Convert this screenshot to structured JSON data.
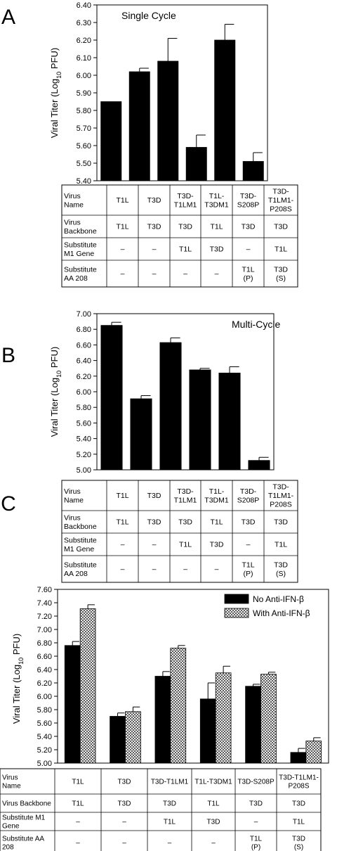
{
  "panels": [
    "A",
    "B",
    "C"
  ],
  "table_rows": [
    [
      "Virus",
      "Name"
    ],
    [
      "Virus",
      "Backbone"
    ],
    [
      "Substitute",
      "M1 Gene"
    ],
    [
      "Substitute",
      "AA 208"
    ]
  ],
  "table_rows_c": [
    [
      "Virus",
      "Name"
    ],
    [
      "Virus Backbone"
    ],
    [
      "Substitute M1",
      "Gene"
    ],
    [
      "Substitute AA",
      "208"
    ]
  ],
  "table_cols": [
    {
      "name": [
        "T1L"
      ],
      "backbone": "T1L",
      "m1": "–",
      "aa": [
        "–"
      ]
    },
    {
      "name": [
        "T3D"
      ],
      "backbone": "T3D",
      "m1": "–",
      "aa": [
        "–"
      ]
    },
    {
      "name": [
        "T3D-",
        "T1LM1"
      ],
      "backbone": "T3D",
      "m1": "T1L",
      "aa": [
        "–"
      ]
    },
    {
      "name": [
        "T1L-",
        "T3DM1"
      ],
      "backbone": "T1L",
      "m1": "T3D",
      "aa": [
        "–"
      ]
    },
    {
      "name": [
        "T3D-",
        "S208P"
      ],
      "backbone": "T3D",
      "m1": "–",
      "aa": [
        "T1L",
        "(P)"
      ]
    },
    {
      "name": [
        "T3D-",
        "T1LM1-",
        "P208S"
      ],
      "backbone": "T3D",
      "m1": "T1L",
      "aa": [
        "T3D",
        "(S)"
      ]
    }
  ],
  "table_cols_c": [
    {
      "name": [
        "T1L"
      ],
      "backbone": "T1L",
      "m1": "–",
      "aa": [
        "–"
      ]
    },
    {
      "name": [
        "T3D"
      ],
      "backbone": "T3D",
      "m1": "–",
      "aa": [
        "–"
      ]
    },
    {
      "name": [
        "T3D-T1LM1"
      ],
      "backbone": "T3D",
      "m1": "T1L",
      "aa": [
        "–"
      ]
    },
    {
      "name": [
        "T1L-T3DM1"
      ],
      "backbone": "T1L",
      "m1": "T3D",
      "aa": [
        "–"
      ]
    },
    {
      "name": [
        "T3D-S208P"
      ],
      "backbone": "T3D",
      "m1": "–",
      "aa": [
        "T1L",
        "(P)"
      ]
    },
    {
      "name": [
        "T3D-T1LM1-",
        "P208S"
      ],
      "backbone": "T3D",
      "m1": "T1L",
      "aa": [
        "T3D",
        "(S)"
      ]
    }
  ],
  "colors": {
    "bar": "#000000",
    "hatch": "#ffffff",
    "axis": "#000000"
  },
  "chart_data": [
    {
      "type": "bar",
      "panel": "A",
      "title": "Single Cycle",
      "ylabel": "Viral Titer (Log10 PFU)",
      "ylim": [
        5.4,
        6.4
      ],
      "yticks": [
        "5.40",
        "5.50",
        "5.60",
        "5.70",
        "5.80",
        "5.90",
        "6.00",
        "6.10",
        "6.20",
        "6.30",
        "6.40"
      ],
      "categories": [
        "T1L",
        "T3D",
        "T3D-T1LM1",
        "T1L-T3DM1",
        "T3D-S208P",
        "T3D-T1LM1-P208S"
      ],
      "series": [
        {
          "values": [
            5.85,
            6.02,
            6.08,
            5.59,
            6.2,
            5.51
          ],
          "errors": [
            0.0,
            0.02,
            0.13,
            0.07,
            0.09,
            0.05
          ]
        }
      ]
    },
    {
      "type": "bar",
      "panel": "B",
      "title": "Multi-Cycle",
      "ylabel": "Viral Titer (Log10 PFU)",
      "ylim": [
        5.0,
        7.0
      ],
      "yticks": [
        "5.00",
        "5.20",
        "5.40",
        "5.60",
        "5.80",
        "6.00",
        "6.20",
        "6.40",
        "6.60",
        "6.80",
        "7.00"
      ],
      "categories": [
        "T1L",
        "T3D",
        "T3D-T1LM1",
        "T1L-T3DM1",
        "T3D-S208P",
        "T3D-T1LM1-P208S"
      ],
      "series": [
        {
          "values": [
            6.85,
            5.91,
            6.63,
            6.28,
            6.24,
            5.12
          ],
          "errors": [
            0.04,
            0.04,
            0.06,
            0.02,
            0.08,
            0.04
          ]
        }
      ]
    },
    {
      "type": "bar",
      "panel": "C",
      "title": "",
      "ylabel": "Viral Titer (Log10 PFU)",
      "ylim": [
        5.0,
        7.6
      ],
      "yticks": [
        "5.00",
        "5.20",
        "5.40",
        "5.60",
        "5.80",
        "6.00",
        "6.20",
        "6.40",
        "6.60",
        "6.80",
        "7.00",
        "7.20",
        "7.40",
        "7.60"
      ],
      "categories": [
        "T1L",
        "T3D",
        "T3D-T1LM1",
        "T1L-T3DM1",
        "T3D-S208P",
        "T3D-T1LM1-P208S"
      ],
      "legend_position": "top-right",
      "series": [
        {
          "name": "No Anti-IFN-β",
          "fill": "solid",
          "values": [
            6.76,
            5.7,
            6.3,
            5.96,
            6.15,
            5.16
          ],
          "errors": [
            0.06,
            0.05,
            0.07,
            0.24,
            0.03,
            0.06
          ]
        },
        {
          "name": "With Anti-IFN-β",
          "fill": "crosshatch",
          "values": [
            7.31,
            5.77,
            6.72,
            6.35,
            6.33,
            5.33
          ],
          "errors": [
            0.06,
            0.07,
            0.04,
            0.1,
            0.03,
            0.05
          ]
        }
      ]
    }
  ]
}
